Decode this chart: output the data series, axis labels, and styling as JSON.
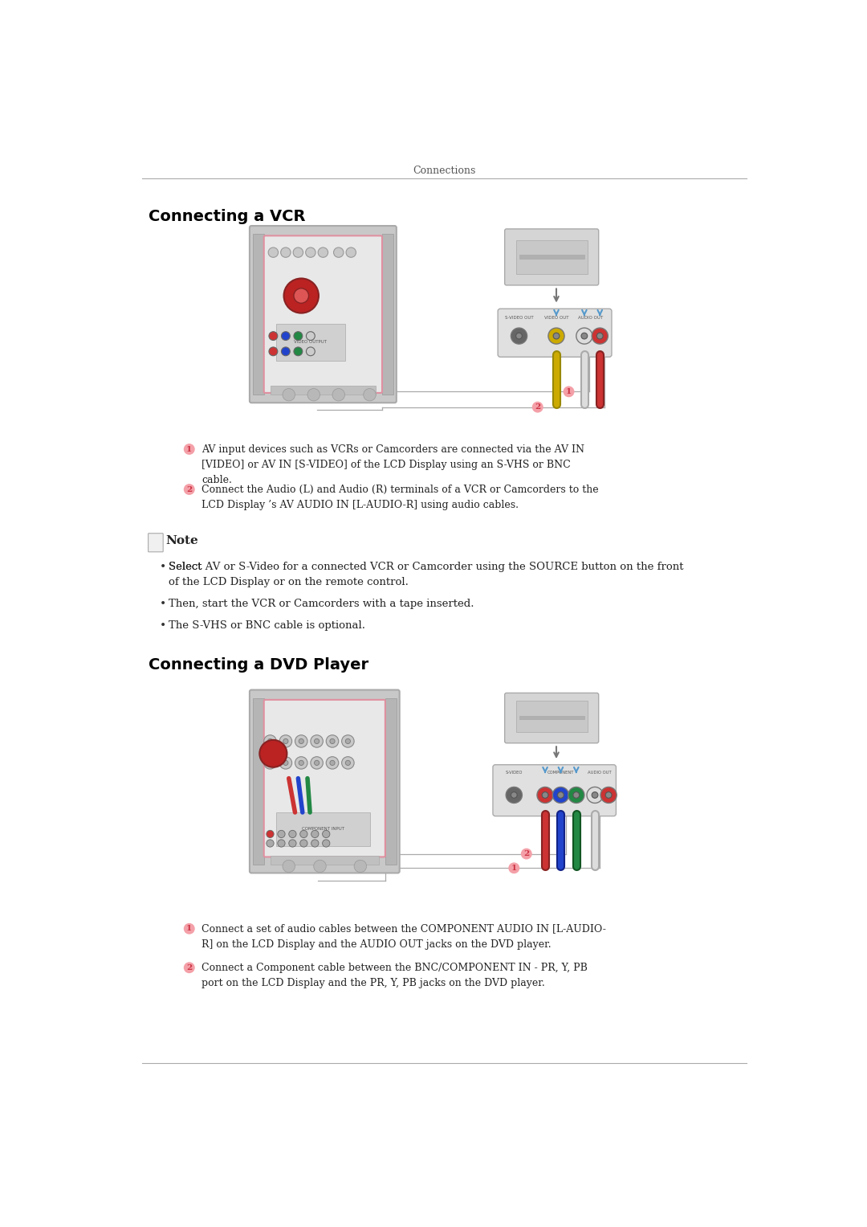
{
  "page_title": "Connections",
  "bg_color": "#ffffff",
  "text_color": "#222222",
  "heading_color": "#000000",
  "section1_heading": "Connecting a VCR",
  "section2_heading": "Connecting a DVD Player",
  "note_label": "Note",
  "vcr_step1": "AV input devices such as VCRs or Camcorders are connected via the AV IN\n[VIDEO] or AV IN [S-VIDEO] of the LCD Display using an S-VHS or BNC\ncable.",
  "vcr_step2": "Connect the Audio (L) and Audio (R) terminals of a VCR or Camcorders to the\nLCD Display ’s AV AUDIO IN [L-AUDIO-R] using audio cables.",
  "note_bullet1_pre": "Select ",
  "note_bullet1_bold1": "AV",
  "note_bullet1_mid": " or ",
  "note_bullet1_bold2": "S-Video",
  "note_bullet1_post": " for a connected VCR or Camcorder using the SOURCE button on the front\nof the LCD Display or on the remote control.",
  "note_bullet2": "Then, start the VCR or Camcorders with a tape inserted.",
  "note_bullet3": "The S-VHS or BNC cable is optional.",
  "dvd_step1": "Connect a set of audio cables between the COMPONENT AUDIO IN [L-AUDIO-\nR] on the LCD Display and the AUDIO OUT jacks on the DVD player.",
  "dvd_step2": "Connect a Component cable between the BNC/COMPONENT IN - PR, Y, PB\nport on the LCD Display and the PR, Y, PB jacks on the DVD player.",
  "circle_fill": "#f4a0a8",
  "circle_text": "#cc3344",
  "line_color": "#888888",
  "header_line_color": "#aaaaaa",
  "display_outer": "#c8c8c8",
  "display_inner": "#d8d8d8",
  "display_face": "#e0e0e0",
  "vcr_device": "#d8d8d8",
  "conn_panel": "#d0d0d0",
  "cable_blue": "#5599cc",
  "cable_yellow": "#ccaa00",
  "cable_white": "#dddddd",
  "cable_red": "#cc3333",
  "cable_green": "#228844",
  "conn_line": "#aaaaaa"
}
